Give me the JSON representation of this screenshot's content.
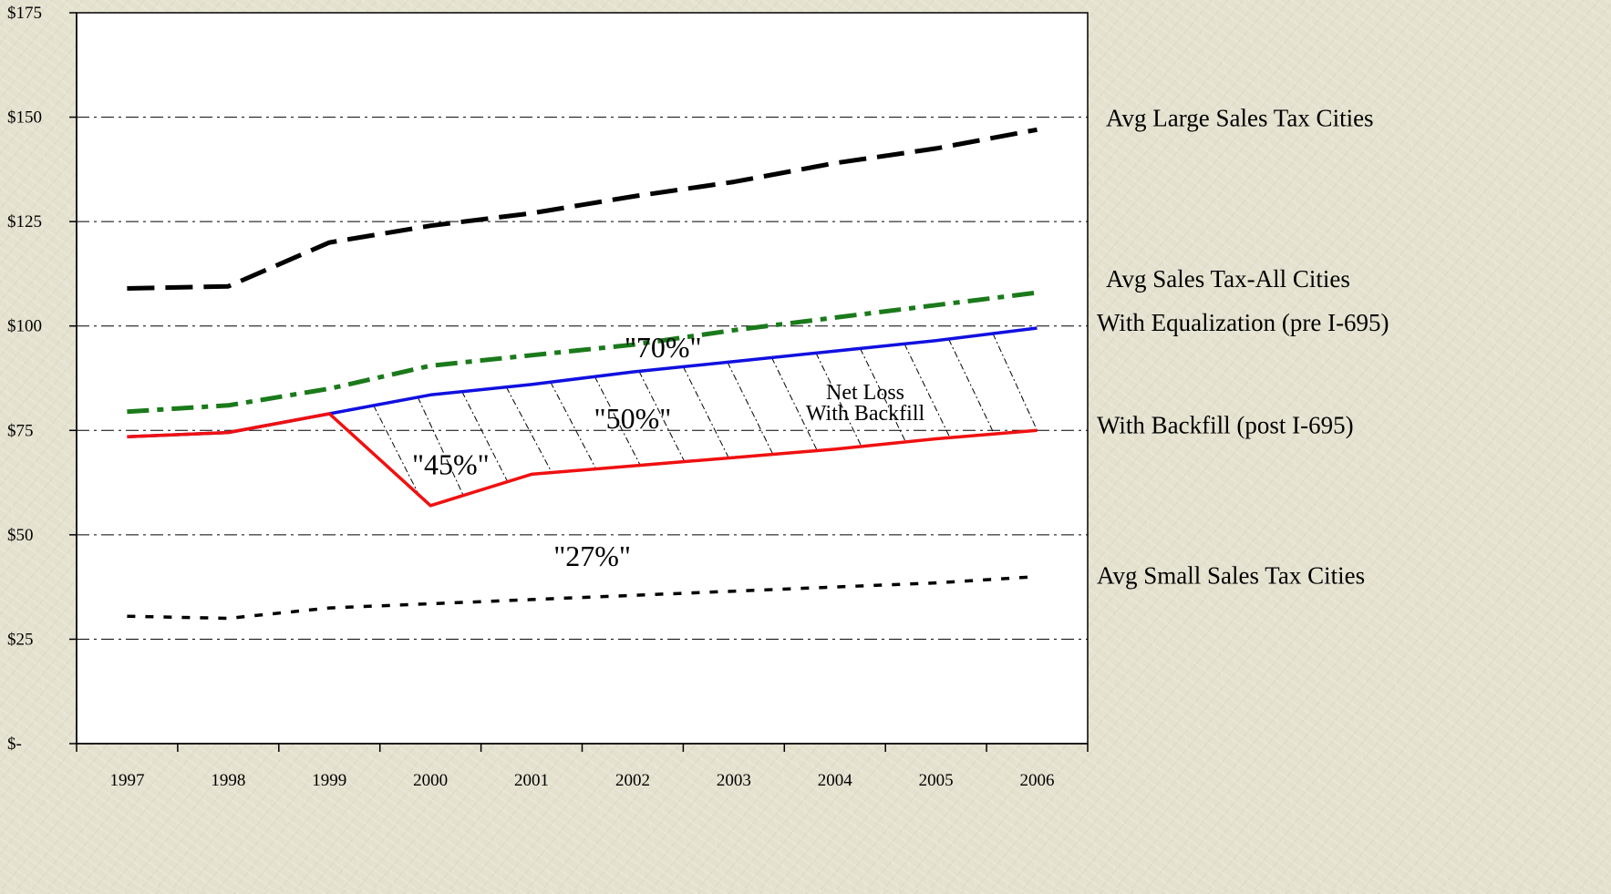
{
  "chart_data": {
    "type": "line",
    "x": [
      "1997",
      "1998",
      "1999",
      "2000",
      "2001",
      "2002",
      "2003",
      "2004",
      "2005",
      "2006"
    ],
    "ylim": [
      0,
      175
    ],
    "y_ticks": [
      {
        "value": 0,
        "label": "$-"
      },
      {
        "value": 25,
        "label": "$25"
      },
      {
        "value": 50,
        "label": "$50"
      },
      {
        "value": 75,
        "label": "$75"
      },
      {
        "value": 100,
        "label": "$100"
      },
      {
        "value": 125,
        "label": "$125"
      },
      {
        "value": 150,
        "label": "$150"
      },
      {
        "value": 175,
        "label": "$175"
      }
    ],
    "grid": true,
    "series": [
      {
        "name": "Avg Large Sales Tax Cities",
        "color": "#000000",
        "style": "long-dash",
        "values": [
          109,
          109.5,
          120,
          124,
          127,
          131,
          134.5,
          139,
          142.5,
          147
        ]
      },
      {
        "name": "Avg Sales Tax-All Cities",
        "color": "#1a7a1a",
        "style": "dash-dot",
        "values": [
          79.5,
          81,
          85,
          90.5,
          93,
          95.5,
          99,
          102,
          105,
          108
        ]
      },
      {
        "name": "With Equalization (pre I-695)",
        "color": "#1010e0",
        "style": "solid",
        "values": [
          73.5,
          74.5,
          79,
          83.5,
          86,
          89,
          91.5,
          94,
          96.5,
          99.5
        ]
      },
      {
        "name": "With Backfill (post I-695)",
        "color": "#f01010",
        "style": "solid",
        "values": [
          73.5,
          74.5,
          79,
          57,
          64.5,
          66.5,
          68.5,
          70.5,
          73,
          75
        ]
      },
      {
        "name": "Avg Small Sales Tax Cities",
        "color": "#000000",
        "style": "dotted",
        "values": [
          30.5,
          30,
          32.5,
          33.5,
          34.5,
          35.5,
          36.5,
          37.5,
          38.5,
          40
        ]
      }
    ],
    "series_label_values": [
      150,
      111.5,
      101,
      76.5,
      40.5
    ],
    "annotations": [
      {
        "text": "\"70%\"",
        "x": 2002.3,
        "y": 92.5,
        "size": "large"
      },
      {
        "text": "\"50%\"",
        "x": 2002.0,
        "y": 75.5,
        "size": "large"
      },
      {
        "text": "\"45%\"",
        "x": 2000.2,
        "y": 64.5,
        "size": "large"
      },
      {
        "text": "\"27%\"",
        "x": 2001.6,
        "y": 42.5,
        "size": "large"
      },
      {
        "text": "Net Loss",
        "x": 2004.3,
        "y": 82.5,
        "size": "small"
      },
      {
        "text": "With Backfill",
        "x": 2004.3,
        "y": 77.5,
        "size": "small"
      }
    ],
    "hatched_region": {
      "between": [
        "With Equalization (pre I-695)",
        "With Backfill (post I-695)"
      ],
      "from": "1999",
      "to": "2006"
    }
  }
}
